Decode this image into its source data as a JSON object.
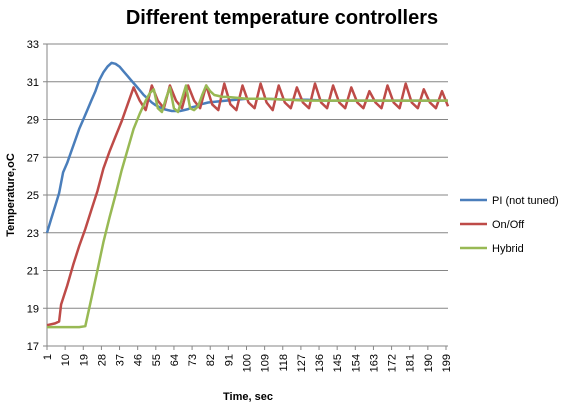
{
  "chart_data": {
    "type": "line",
    "title": "Different temperature controllers",
    "xlabel": "Time, sec",
    "ylabel": "Temperature,oC",
    "ylim": [
      17,
      33
    ],
    "yticks": [
      17,
      19,
      21,
      23,
      25,
      27,
      29,
      31,
      33
    ],
    "xlim": [
      1,
      200
    ],
    "xticks": [
      1,
      10,
      19,
      28,
      37,
      46,
      55,
      64,
      73,
      82,
      91,
      100,
      109,
      118,
      127,
      136,
      145,
      154,
      163,
      172,
      181,
      190,
      199
    ],
    "grid": "horizontal",
    "legend_position": "right",
    "series": [
      {
        "name": "PI (not tuned)",
        "color": "#4a7ebb",
        "points": [
          [
            1,
            23
          ],
          [
            3,
            23.7
          ],
          [
            5,
            24.4
          ],
          [
            7,
            25.1
          ],
          [
            9,
            26.2
          ],
          [
            11,
            26.7
          ],
          [
            13,
            27.3
          ],
          [
            15,
            27.9
          ],
          [
            17,
            28.5
          ],
          [
            19,
            29
          ],
          [
            21,
            29.5
          ],
          [
            23,
            30
          ],
          [
            25,
            30.5
          ],
          [
            27,
            31.1
          ],
          [
            29,
            31.5
          ],
          [
            31,
            31.8
          ],
          [
            33,
            32
          ],
          [
            35,
            31.95
          ],
          [
            37,
            31.8
          ],
          [
            39,
            31.55
          ],
          [
            41,
            31.3
          ],
          [
            43,
            31.05
          ],
          [
            45,
            30.8
          ],
          [
            47,
            30.55
          ],
          [
            49,
            30.3
          ],
          [
            51,
            30.1
          ],
          [
            53,
            29.9
          ],
          [
            55,
            29.75
          ],
          [
            57,
            29.65
          ],
          [
            59,
            29.55
          ],
          [
            61,
            29.5
          ],
          [
            63,
            29.45
          ],
          [
            65,
            29.45
          ],
          [
            67,
            29.45
          ],
          [
            69,
            29.5
          ],
          [
            71,
            29.55
          ],
          [
            73,
            29.65
          ],
          [
            75,
            29.7
          ],
          [
            77,
            29.8
          ],
          [
            79,
            29.85
          ],
          [
            81,
            29.9
          ],
          [
            85,
            29.95
          ],
          [
            90,
            30
          ],
          [
            100,
            30.1
          ],
          [
            110,
            30.1
          ],
          [
            120,
            30.05
          ],
          [
            130,
            30.05
          ],
          [
            140,
            30
          ],
          [
            150,
            30
          ],
          [
            160,
            30
          ],
          [
            170,
            30
          ],
          [
            180,
            30
          ],
          [
            190,
            30
          ],
          [
            200,
            30
          ]
        ]
      },
      {
        "name": "On/Off",
        "color": "#be4b48",
        "points": [
          [
            1,
            18.1
          ],
          [
            5,
            18.2
          ],
          [
            7,
            18.3
          ],
          [
            8,
            19.2
          ],
          [
            11,
            20.2
          ],
          [
            14,
            21.3
          ],
          [
            17,
            22.3
          ],
          [
            20,
            23.2
          ],
          [
            23,
            24.2
          ],
          [
            26,
            25.2
          ],
          [
            29,
            26.4
          ],
          [
            32,
            27.3
          ],
          [
            35,
            28.1
          ],
          [
            38,
            28.9
          ],
          [
            41,
            29.8
          ],
          [
            44,
            30.7
          ],
          [
            47,
            30
          ],
          [
            50,
            29.5
          ],
          [
            53,
            30.8
          ],
          [
            56,
            30
          ],
          [
            59,
            29.6
          ],
          [
            62,
            30.8
          ],
          [
            65,
            30
          ],
          [
            68,
            29.6
          ],
          [
            71,
            30.8
          ],
          [
            74,
            30
          ],
          [
            77,
            29.6
          ],
          [
            80,
            30.8
          ],
          [
            83,
            29.8
          ],
          [
            86,
            29.5
          ],
          [
            89,
            30.9
          ],
          [
            92,
            29.8
          ],
          [
            95,
            29.5
          ],
          [
            98,
            30.8
          ],
          [
            101,
            29.9
          ],
          [
            104,
            29.6
          ],
          [
            107,
            30.9
          ],
          [
            110,
            29.9
          ],
          [
            113,
            29.5
          ],
          [
            116,
            30.8
          ],
          [
            119,
            29.9
          ],
          [
            122,
            29.6
          ],
          [
            125,
            30.7
          ],
          [
            128,
            29.9
          ],
          [
            131,
            29.6
          ],
          [
            134,
            30.9
          ],
          [
            137,
            29.9
          ],
          [
            140,
            29.6
          ],
          [
            143,
            30.8
          ],
          [
            146,
            29.9
          ],
          [
            149,
            29.6
          ],
          [
            152,
            30.7
          ],
          [
            155,
            29.9
          ],
          [
            158,
            29.6
          ],
          [
            161,
            30.5
          ],
          [
            164,
            29.9
          ],
          [
            167,
            29.6
          ],
          [
            170,
            30.8
          ],
          [
            173,
            29.9
          ],
          [
            176,
            29.6
          ],
          [
            179,
            30.9
          ],
          [
            182,
            29.9
          ],
          [
            185,
            29.6
          ],
          [
            188,
            30.6
          ],
          [
            191,
            29.9
          ],
          [
            194,
            29.6
          ],
          [
            197,
            30.5
          ],
          [
            200,
            29.7
          ]
        ]
      },
      {
        "name": "Hybrid",
        "color": "#98b954",
        "points": [
          [
            1,
            18
          ],
          [
            10,
            18
          ],
          [
            17,
            18
          ],
          [
            20,
            18.05
          ],
          [
            23,
            19.5
          ],
          [
            26,
            21
          ],
          [
            29,
            22.5
          ],
          [
            32,
            23.8
          ],
          [
            35,
            25
          ],
          [
            38,
            26.3
          ],
          [
            41,
            27.4
          ],
          [
            44,
            28.5
          ],
          [
            47,
            29.3
          ],
          [
            50,
            30
          ],
          [
            52,
            30.4
          ],
          [
            54,
            30.6
          ],
          [
            56,
            29.6
          ],
          [
            58,
            29.4
          ],
          [
            60,
            30.1
          ],
          [
            62,
            30.7
          ],
          [
            64,
            29.6
          ],
          [
            66,
            29.4
          ],
          [
            68,
            30.1
          ],
          [
            70,
            30.8
          ],
          [
            72,
            29.6
          ],
          [
            74,
            29.5
          ],
          [
            76,
            29.7
          ],
          [
            78,
            30.3
          ],
          [
            80,
            30.8
          ],
          [
            82,
            30.5
          ],
          [
            84,
            30.3
          ],
          [
            86,
            30.25
          ],
          [
            88,
            30.2
          ],
          [
            90,
            30.2
          ],
          [
            95,
            30.15
          ],
          [
            100,
            30.1
          ],
          [
            110,
            30.1
          ],
          [
            120,
            30.05
          ],
          [
            130,
            30
          ],
          [
            140,
            30
          ],
          [
            150,
            30
          ],
          [
            160,
            30
          ],
          [
            170,
            30
          ],
          [
            180,
            30
          ],
          [
            190,
            30
          ],
          [
            200,
            30
          ]
        ]
      }
    ]
  }
}
